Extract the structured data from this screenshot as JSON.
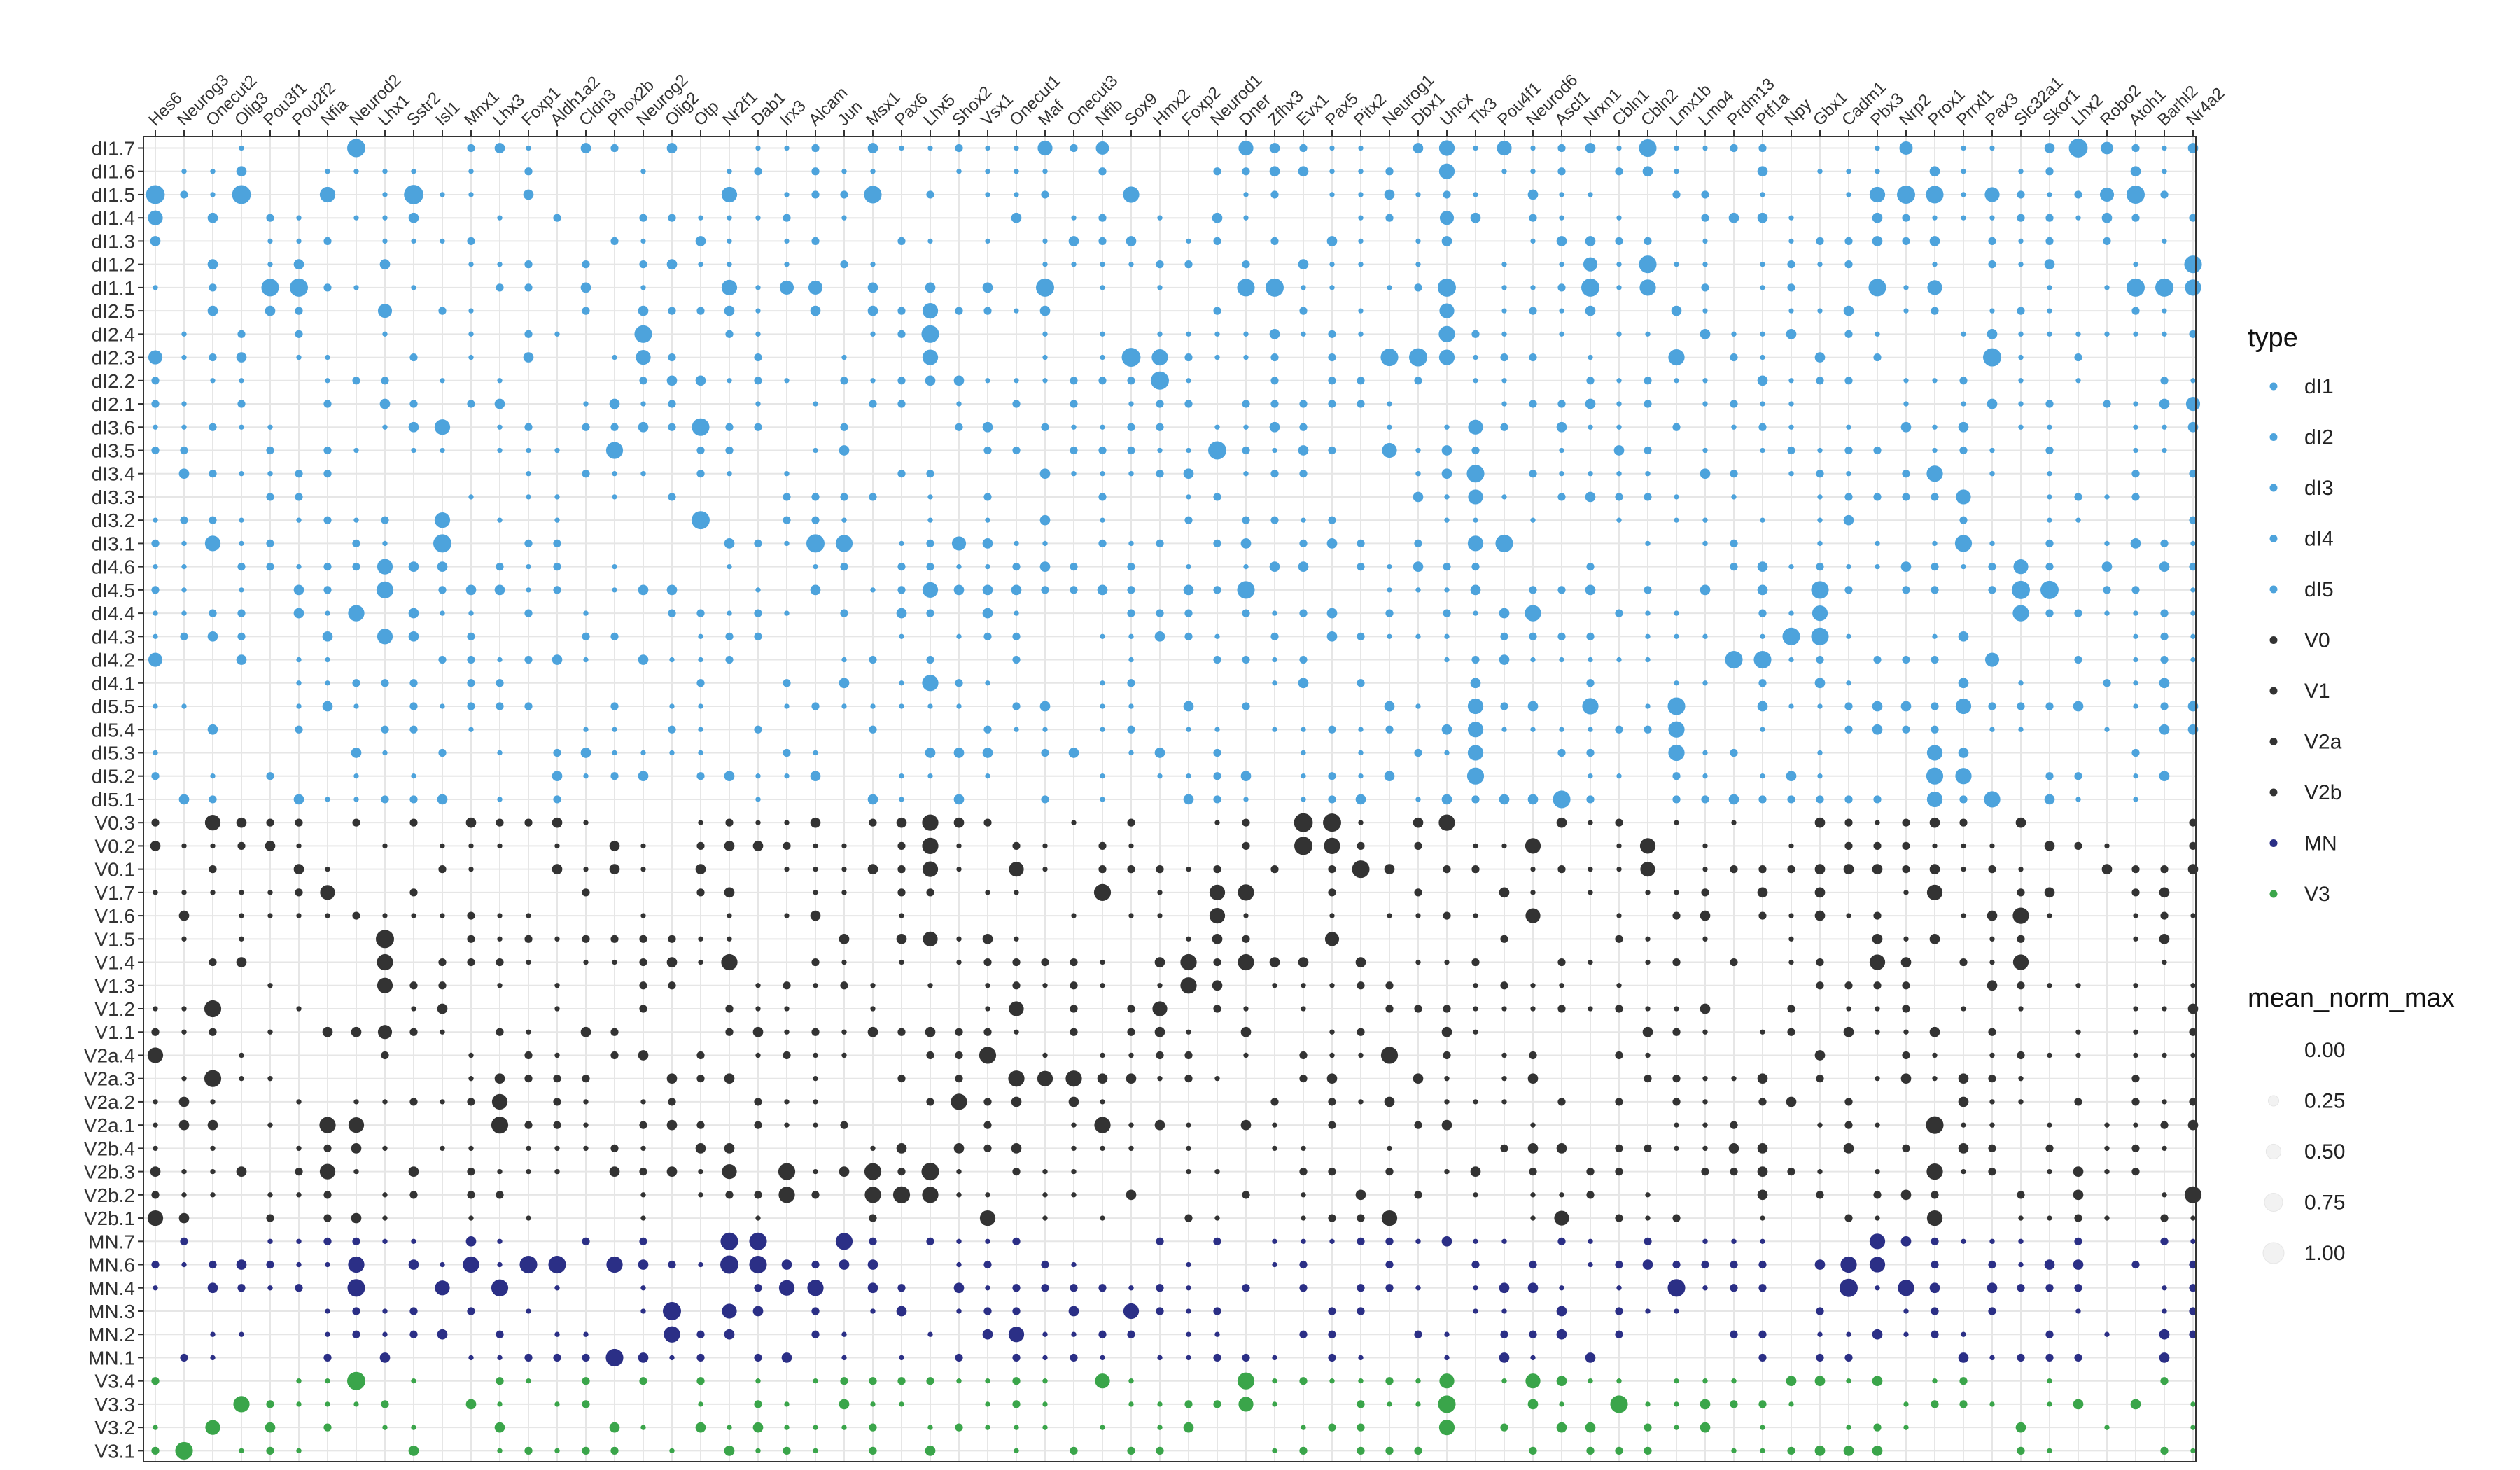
{
  "chart_data": {
    "type": "dotplot",
    "genes": [
      "Hes6",
      "Neurog3",
      "Onecut2",
      "Olig3",
      "Pou3f1",
      "Pou2f2",
      "Nfia",
      "Neurod2",
      "Lhx1",
      "Sstr2",
      "Isl1",
      "Mnx1",
      "Lhx3",
      "Foxp1",
      "Aldh1a2",
      "Cldn3",
      "Phox2b",
      "Neurog2",
      "Olig2",
      "Otp",
      "Nr2f1",
      "Dab1",
      "Irx3",
      "Alcam",
      "Jun",
      "Msx1",
      "Pax6",
      "Lhx5",
      "Shox2",
      "Vsx1",
      "Onecut1",
      "Maf",
      "Onecut3",
      "Nfib",
      "Sox9",
      "Hmx2",
      "Foxp2",
      "Neurod1",
      "Dner",
      "Zfhx3",
      "Evx1",
      "Pax5",
      "Pitx2",
      "Neurog1",
      "Dbx1",
      "Uncx",
      "Tlx3",
      "Pou4f1",
      "Neurod6",
      "Ascl1",
      "Nrxn1",
      "Cbln1",
      "Cbln2",
      "Lmx1b",
      "Lmo4",
      "Prdm13",
      "Ptf1a",
      "Npy",
      "Gbx1",
      "Cadm1",
      "Pbx3",
      "Nrp2",
      "Prox1",
      "Prrxl1",
      "Pax3",
      "Slc32a1",
      "Skor1",
      "Lhx2",
      "Robo2",
      "Atoh1",
      "Barhl2",
      "Nr4a2"
    ],
    "clusters": [
      "dI1.7",
      "dI1.6",
      "dI1.5",
      "dI1.4",
      "dI1.3",
      "dI1.2",
      "dI1.1",
      "dI2.5",
      "dI2.4",
      "dI2.3",
      "dI2.2",
      "dI2.1",
      "dI3.6",
      "dI3.5",
      "dI3.4",
      "dI3.3",
      "dI3.2",
      "dI3.1",
      "dI4.6",
      "dI4.5",
      "dI4.4",
      "dI4.3",
      "dI4.2",
      "dI4.1",
      "dI5.5",
      "dI5.4",
      "dI5.3",
      "dI5.2",
      "dI5.1",
      "V0.3",
      "V0.2",
      "V0.1",
      "V1.7",
      "V1.6",
      "V1.5",
      "V1.4",
      "V1.3",
      "V1.2",
      "V1.1",
      "V2a.4",
      "V2a.3",
      "V2a.2",
      "V2a.1",
      "V2b.4",
      "V2b.3",
      "V2b.2",
      "V2b.1",
      "MN.7",
      "MN.6",
      "MN.4",
      "MN.3",
      "MN.2",
      "MN.1",
      "V3.4",
      "V3.3",
      "V3.2",
      "V3.1"
    ],
    "cluster_types": [
      "dI1",
      "dI1",
      "dI1",
      "dI1",
      "dI1",
      "dI1",
      "dI1",
      "dI2",
      "dI2",
      "dI2",
      "dI2",
      "dI2",
      "dI3",
      "dI3",
      "dI3",
      "dI3",
      "dI3",
      "dI3",
      "dI4",
      "dI4",
      "dI4",
      "dI4",
      "dI4",
      "dI4",
      "dI5",
      "dI5",
      "dI5",
      "dI5",
      "dI5",
      "V0",
      "V0",
      "V0",
      "V1",
      "V1",
      "V1",
      "V1",
      "V1",
      "V1",
      "V1",
      "V2a",
      "V2a",
      "V2a",
      "V2a",
      "V2b",
      "V2b",
      "V2b",
      "V2b",
      "MN",
      "MN",
      "MN",
      "MN",
      "MN",
      "MN",
      "V3",
      "V3",
      "V3",
      "V3"
    ],
    "type_legend": {
      "title": "type",
      "entries": [
        {
          "label": "dI1",
          "color": "#4da3dc"
        },
        {
          "label": "dI2",
          "color": "#4da3dc"
        },
        {
          "label": "dI3",
          "color": "#4da3dc"
        },
        {
          "label": "dI4",
          "color": "#4da3dc"
        },
        {
          "label": "dI5",
          "color": "#4da3dc"
        },
        {
          "label": "V0",
          "color": "#333333"
        },
        {
          "label": "V1",
          "color": "#333333"
        },
        {
          "label": "V2a",
          "color": "#333333"
        },
        {
          "label": "V2b",
          "color": "#333333"
        },
        {
          "label": "MN",
          "color": "#2b2f86"
        },
        {
          "label": "V3",
          "color": "#3aa54a"
        }
      ]
    },
    "size_legend": {
      "title": "mean_norm_max",
      "values": [
        "0.00",
        "0.25",
        "0.50",
        "0.75",
        "1.00"
      ]
    },
    "size_range": [
      0,
      1
    ],
    "grid": true,
    "highlights": [
      [
        "dI1.7",
        "Neurod2",
        0.75
      ],
      [
        "dI1.7",
        "Lhx2",
        0.8
      ],
      [
        "dI1.7",
        "Cbln2",
        0.7
      ],
      [
        "dI1.7",
        "Uncx",
        0.55
      ],
      [
        "dI1.7",
        "Maf",
        0.5
      ],
      [
        "dI1.7",
        "Dner",
        0.5
      ],
      [
        "dI1.7",
        "Nfib",
        0.4
      ],
      [
        "dI1.7",
        "Pou4f1",
        0.5
      ],
      [
        "dI1.7",
        "Nrp2",
        0.4
      ],
      [
        "dI1.7",
        "Robo2",
        0.35
      ],
      [
        "dI1.5",
        "Hes6",
        0.8
      ],
      [
        "dI1.5",
        "Olig3",
        0.8
      ],
      [
        "dI1.5",
        "Sstr2",
        0.85
      ],
      [
        "dI1.5",
        "Msx1",
        0.7
      ],
      [
        "dI1.5",
        "Nfia",
        0.55
      ],
      [
        "dI1.5",
        "Nr2f1",
        0.55
      ],
      [
        "dI1.5",
        "Sox9",
        0.6
      ],
      [
        "dI1.5",
        "Nrp2",
        0.75
      ],
      [
        "dI1.5",
        "Prox1",
        0.7
      ],
      [
        "dI1.5",
        "Atoh1",
        0.75
      ],
      [
        "dI1.5",
        "Pax3",
        0.5
      ],
      [
        "dI1.5",
        "Pbx3",
        0.55
      ],
      [
        "dI1.5",
        "Robo2",
        0.45
      ],
      [
        "dI1.6",
        "Uncx",
        0.55
      ],
      [
        "dI1.4",
        "Hes6",
        0.5
      ],
      [
        "dI1.4",
        "Uncx",
        0.45
      ],
      [
        "dI1.2",
        "Cbln2",
        0.7
      ],
      [
        "dI1.2",
        "Nr4a2",
        0.7
      ],
      [
        "dI1.2",
        "Nrxn1",
        0.45
      ],
      [
        "dI1.1",
        "Pou2f2",
        0.75
      ],
      [
        "dI1.1",
        "Pou3f1",
        0.7
      ],
      [
        "dI1.1",
        "Maf",
        0.75
      ],
      [
        "dI1.1",
        "Dner",
        0.7
      ],
      [
        "dI1.1",
        "Zfhx3",
        0.75
      ],
      [
        "dI1.1",
        "Uncx",
        0.75
      ],
      [
        "dI1.1",
        "Nrxn1",
        0.75
      ],
      [
        "dI1.1",
        "Cbln2",
        0.6
      ],
      [
        "dI1.1",
        "Pbx3",
        0.7
      ],
      [
        "dI1.1",
        "Atoh1",
        0.75
      ],
      [
        "dI1.1",
        "Barhl2",
        0.75
      ],
      [
        "dI1.1",
        "Nr4a2",
        0.6
      ],
      [
        "dI1.1",
        "Nr2f1",
        0.55
      ],
      [
        "dI1.1",
        "Irx3",
        0.45
      ],
      [
        "dI1.1",
        "Alcam",
        0.45
      ],
      [
        "dI1.1",
        "Prox1",
        0.5
      ],
      [
        "dI2.5",
        "Lhx5",
        0.55
      ],
      [
        "dI2.5",
        "Lhx1",
        0.45
      ],
      [
        "dI2.5",
        "Uncx",
        0.5
      ],
      [
        "dI2.4",
        "Neurog2",
        0.7
      ],
      [
        "dI2.4",
        "Lhx5",
        0.7
      ],
      [
        "dI2.4",
        "Uncx",
        0.6
      ],
      [
        "dI2.3",
        "Sox9",
        0.8
      ],
      [
        "dI2.3",
        "Hmx2",
        0.6
      ],
      [
        "dI2.3",
        "Neurog1",
        0.7
      ],
      [
        "dI2.3",
        "Dbx1",
        0.75
      ],
      [
        "dI2.3",
        "Lmx1b",
        0.6
      ],
      [
        "dI2.3",
        "Pax3",
        0.75
      ],
      [
        "dI2.3",
        "Uncx",
        0.55
      ],
      [
        "dI2.3",
        "Lhx5",
        0.55
      ],
      [
        "dI2.3",
        "Neurog2",
        0.5
      ],
      [
        "dI2.3",
        "Hes6",
        0.45
      ],
      [
        "dI2.2",
        "Hmx2",
        0.75
      ],
      [
        "dI2.1",
        "Nr4a2",
        0.45
      ],
      [
        "dI3.6",
        "Isl1",
        0.55
      ],
      [
        "dI3.6",
        "Otp",
        0.7
      ],
      [
        "dI3.6",
        "Tlx3",
        0.5
      ],
      [
        "dI3.5",
        "Phox2b",
        0.65
      ],
      [
        "dI3.5",
        "Neurod1",
        0.75
      ],
      [
        "dI3.5",
        "Neurog1",
        0.5
      ],
      [
        "dI3.4",
        "Tlx3",
        0.7
      ],
      [
        "dI3.4",
        "Prox1",
        0.6
      ],
      [
        "dI3.3",
        "Tlx3",
        0.5
      ],
      [
        "dI3.3",
        "Prrxl1",
        0.5
      ],
      [
        "dI3.2",
        "Otp",
        0.75
      ],
      [
        "dI3.2",
        "Isl1",
        0.55
      ],
      [
        "dI3.1",
        "Isl1",
        0.75
      ],
      [
        "dI3.1",
        "Alcam",
        0.75
      ],
      [
        "dI3.1",
        "Jun",
        0.65
      ],
      [
        "dI3.1",
        "Onecut2",
        0.55
      ],
      [
        "dI3.1",
        "Pou4f1",
        0.7
      ],
      [
        "dI3.1",
        "Prrxl1",
        0.65
      ],
      [
        "dI3.1",
        "Tlx3",
        0.55
      ],
      [
        "dI3.1",
        "Shox2",
        0.45
      ],
      [
        "dI4.6",
        "Lhx1",
        0.55
      ],
      [
        "dI4.6",
        "Slc32a1",
        0.5
      ],
      [
        "dI4.5",
        "Lhx1",
        0.65
      ],
      [
        "dI4.5",
        "Dner",
        0.7
      ],
      [
        "dI4.5",
        "Gbx1",
        0.7
      ],
      [
        "dI4.5",
        "Slc32a1",
        0.75
      ],
      [
        "dI4.5",
        "Skor1",
        0.75
      ],
      [
        "dI4.5",
        "Lhx5",
        0.55
      ],
      [
        "dI4.4",
        "Neurod2",
        0.6
      ],
      [
        "dI4.4",
        "Neurod6",
        0.6
      ],
      [
        "dI4.4",
        "Gbx1",
        0.55
      ],
      [
        "dI4.4",
        "Slc32a1",
        0.6
      ],
      [
        "dI4.3",
        "Lhx1",
        0.55
      ],
      [
        "dI4.3",
        "Npy",
        0.7
      ],
      [
        "dI4.3",
        "Gbx1",
        0.7
      ],
      [
        "dI4.2",
        "Prdm13",
        0.7
      ],
      [
        "dI4.2",
        "Ptf1a",
        0.7
      ],
      [
        "dI4.2",
        "Hes6",
        0.45
      ],
      [
        "dI4.2",
        "Pax3",
        0.45
      ],
      [
        "dI4.1",
        "Lhx5",
        0.6
      ],
      [
        "dI5.5",
        "Tlx3",
        0.55
      ],
      [
        "dI5.5",
        "Nrxn1",
        0.6
      ],
      [
        "dI5.5",
        "Lmx1b",
        0.7
      ],
      [
        "dI5.5",
        "Prrxl1",
        0.55
      ],
      [
        "dI5.4",
        "Tlx3",
        0.55
      ],
      [
        "dI5.4",
        "Lmx1b",
        0.6
      ],
      [
        "dI5.3",
        "Tlx3",
        0.55
      ],
      [
        "dI5.3",
        "Lmx1b",
        0.6
      ],
      [
        "dI5.3",
        "Prox1",
        0.55
      ],
      [
        "dI5.2",
        "Tlx3",
        0.65
      ],
      [
        "dI5.2",
        "Prox1",
        0.65
      ],
      [
        "dI5.2",
        "Prrxl1",
        0.6
      ],
      [
        "dI5.1",
        "Ascl1",
        0.7
      ],
      [
        "dI5.1",
        "Pax3",
        0.6
      ],
      [
        "dI5.1",
        "Prox1",
        0.55
      ],
      [
        "V0.3",
        "Onecut2",
        0.55
      ],
      [
        "V0.3",
        "Lhx5",
        0.6
      ],
      [
        "V0.3",
        "Evx1",
        0.8
      ],
      [
        "V0.3",
        "Pax5",
        0.75
      ],
      [
        "V0.3",
        "Uncx",
        0.6
      ],
      [
        "V0.2",
        "Lhx5",
        0.6
      ],
      [
        "V0.2",
        "Evx1",
        0.75
      ],
      [
        "V0.2",
        "Pax5",
        0.6
      ],
      [
        "V0.2",
        "Neurod6",
        0.55
      ],
      [
        "V0.2",
        "Cbln2",
        0.55
      ],
      [
        "V0.1",
        "Lhx5",
        0.55
      ],
      [
        "V0.1",
        "Onecut1",
        0.5
      ],
      [
        "V0.1",
        "Pitx2",
        0.7
      ],
      [
        "V0.1",
        "Cbln2",
        0.5
      ],
      [
        "V1.7",
        "Nfib",
        0.65
      ],
      [
        "V1.7",
        "Neurod1",
        0.55
      ],
      [
        "V1.7",
        "Dner",
        0.6
      ],
      [
        "V1.7",
        "Prox1",
        0.55
      ],
      [
        "V1.7",
        "Nfia",
        0.5
      ],
      [
        "V1.6",
        "Neurod1",
        0.55
      ],
      [
        "V1.6",
        "Slc32a1",
        0.6
      ],
      [
        "V1.6",
        "Neurod6",
        0.5
      ],
      [
        "V1.5",
        "Lhx1",
        0.75
      ],
      [
        "V1.5",
        "Lhx5",
        0.5
      ],
      [
        "V1.5",
        "Pax5",
        0.45
      ],
      [
        "V1.4",
        "Lhx1",
        0.6
      ],
      [
        "V1.4",
        "Nr2f1",
        0.6
      ],
      [
        "V1.4",
        "Dner",
        0.6
      ],
      [
        "V1.4",
        "Foxp2",
        0.6
      ],
      [
        "V1.4",
        "Slc32a1",
        0.55
      ],
      [
        "V1.4",
        "Pbx3",
        0.55
      ],
      [
        "V1.3",
        "Foxp2",
        0.6
      ],
      [
        "V1.3",
        "Lhx1",
        0.55
      ],
      [
        "V1.2",
        "Onecut2",
        0.65
      ],
      [
        "V1.2",
        "Onecut1",
        0.5
      ],
      [
        "V1.2",
        "Hmx2",
        0.5
      ],
      [
        "V1.1",
        "Lhx1",
        0.45
      ],
      [
        "V2a.4",
        "Hes6",
        0.55
      ],
      [
        "V2a.4",
        "Vsx1",
        0.65
      ],
      [
        "V2a.4",
        "Neurog1",
        0.65
      ],
      [
        "V2a.3",
        "Onecut2",
        0.65
      ],
      [
        "V2a.3",
        "Onecut1",
        0.6
      ],
      [
        "V2a.3",
        "Maf",
        0.55
      ],
      [
        "V2a.3",
        "Onecut3",
        0.6
      ],
      [
        "V2a.2",
        "Lhx3",
        0.55
      ],
      [
        "V2a.2",
        "Shox2",
        0.6
      ],
      [
        "V2a.1",
        "Lhx3",
        0.65
      ],
      [
        "V2a.1",
        "Nfia",
        0.6
      ],
      [
        "V2a.1",
        "Neurod2",
        0.55
      ],
      [
        "V2a.1",
        "Nfib",
        0.6
      ],
      [
        "V2a.1",
        "Prox1",
        0.7
      ],
      [
        "V2b.3",
        "Nfia",
        0.55
      ],
      [
        "V2b.3",
        "Irx3",
        0.65
      ],
      [
        "V2b.3",
        "Msx1",
        0.65
      ],
      [
        "V2b.3",
        "Lhx5",
        0.7
      ],
      [
        "V2b.3",
        "Prox1",
        0.6
      ],
      [
        "V2b.3",
        "Nr2f1",
        0.5
      ],
      [
        "V2b.2",
        "Irx3",
        0.6
      ],
      [
        "V2b.2",
        "Msx1",
        0.6
      ],
      [
        "V2b.2",
        "Pax6",
        0.65
      ],
      [
        "V2b.2",
        "Lhx5",
        0.6
      ],
      [
        "V2b.2",
        "Nr4a2",
        0.65
      ],
      [
        "V2b.1",
        "Hes6",
        0.55
      ],
      [
        "V2b.1",
        "Vsx1",
        0.55
      ],
      [
        "V2b.1",
        "Neurog1",
        0.55
      ],
      [
        "V2b.1",
        "Ascl1",
        0.5
      ],
      [
        "V2b.1",
        "Prox1",
        0.55
      ],
      [
        "MN.7",
        "Nr2f1",
        0.7
      ],
      [
        "MN.7",
        "Dab1",
        0.7
      ],
      [
        "MN.7",
        "Jun",
        0.65
      ],
      [
        "MN.7",
        "Pbx3",
        0.55
      ],
      [
        "MN.6",
        "Neurod2",
        0.6
      ],
      [
        "MN.6",
        "Mnx1",
        0.6
      ],
      [
        "MN.6",
        "Foxp1",
        0.7
      ],
      [
        "MN.6",
        "Aldh1a2",
        0.7
      ],
      [
        "MN.6",
        "Phox2b",
        0.6
      ],
      [
        "MN.6",
        "Nr2f1",
        0.75
      ],
      [
        "MN.6",
        "Dab1",
        0.7
      ],
      [
        "MN.6",
        "Cadm1",
        0.6
      ],
      [
        "MN.6",
        "Pbx3",
        0.55
      ],
      [
        "MN.4",
        "Neurod2",
        0.7
      ],
      [
        "MN.4",
        "Lhx3",
        0.65
      ],
      [
        "MN.4",
        "Isl1",
        0.5
      ],
      [
        "MN.4",
        "Irx3",
        0.55
      ],
      [
        "MN.4",
        "Alcam",
        0.6
      ],
      [
        "MN.4",
        "Lmx1b",
        0.7
      ],
      [
        "MN.4",
        "Cadm1",
        0.75
      ],
      [
        "MN.4",
        "Nrp2",
        0.6
      ],
      [
        "MN.3",
        "Olig2",
        0.75
      ],
      [
        "MN.3",
        "Sox9",
        0.55
      ],
      [
        "MN.3",
        "Nr2f1",
        0.5
      ],
      [
        "MN.2",
        "Olig2",
        0.6
      ],
      [
        "MN.2",
        "Onecut1",
        0.55
      ],
      [
        "MN.1",
        "Phox2b",
        0.7
      ],
      [
        "V3.4",
        "Neurod2",
        0.75
      ],
      [
        "V3.4",
        "Dner",
        0.65
      ],
      [
        "V3.4",
        "Nfib",
        0.5
      ],
      [
        "V3.4",
        "Uncx",
        0.5
      ],
      [
        "V3.4",
        "Neurod6",
        0.5
      ],
      [
        "V3.3",
        "Olig3",
        0.6
      ],
      [
        "V3.3",
        "Uncx",
        0.7
      ],
      [
        "V3.3",
        "Cbln1",
        0.7
      ],
      [
        "V3.3",
        "Dner",
        0.5
      ],
      [
        "V3.2",
        "Onecut2",
        0.5
      ],
      [
        "V3.2",
        "Uncx",
        0.55
      ],
      [
        "V3.1",
        "Neurog3",
        0.7
      ]
    ]
  }
}
